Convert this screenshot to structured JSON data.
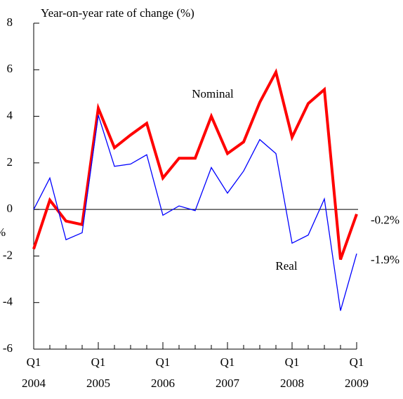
{
  "chart_data": {
    "type": "line",
    "title": "Year-on-year rate of change (%)",
    "y_label": "%",
    "categories": [
      {
        "quarter": "Q1",
        "year": "2004"
      },
      null,
      null,
      null,
      {
        "quarter": "Q1",
        "year": "2005"
      },
      null,
      null,
      null,
      {
        "quarter": "Q1",
        "year": "2006"
      },
      null,
      null,
      null,
      {
        "quarter": "Q1",
        "year": "2007"
      },
      null,
      null,
      null,
      {
        "quarter": "Q1",
        "year": "2008"
      },
      null,
      null,
      null,
      {
        "quarter": "Q1",
        "year": "2009"
      }
    ],
    "series": [
      {
        "name": "Nominal",
        "color": "#ff0000",
        "values": [
          -1.7,
          0.4,
          -0.5,
          -0.65,
          4.35,
          2.65,
          3.2,
          3.7,
          1.35,
          2.2,
          2.2,
          4.0,
          2.4,
          2.9,
          4.6,
          5.9,
          3.1,
          4.55,
          5.15,
          -2.15,
          -0.2
        ],
        "value_labels": [
          null,
          null,
          null,
          null,
          null,
          null,
          null,
          null,
          null,
          null,
          null,
          null,
          null,
          null,
          null,
          null,
          null,
          null,
          null,
          null,
          "-0.2%"
        ]
      },
      {
        "name": "Real",
        "color": "#0000ff",
        "values": [
          0.0,
          1.35,
          -1.3,
          -1.0,
          4.05,
          1.85,
          1.95,
          2.35,
          -0.25,
          0.15,
          -0.05,
          1.8,
          0.7,
          1.65,
          3.0,
          2.4,
          -1.45,
          -1.1,
          0.45,
          -4.35,
          -1.9
        ],
        "value_labels": [
          null,
          null,
          null,
          null,
          null,
          null,
          null,
          null,
          null,
          null,
          null,
          null,
          null,
          null,
          null,
          null,
          null,
          null,
          null,
          null,
          "-1.9%"
        ]
      }
    ],
    "ylim": [
      -6,
      8
    ],
    "yticks": [
      -6,
      -4,
      -2,
      0,
      2,
      4,
      6,
      8
    ],
    "zero_line": true
  }
}
